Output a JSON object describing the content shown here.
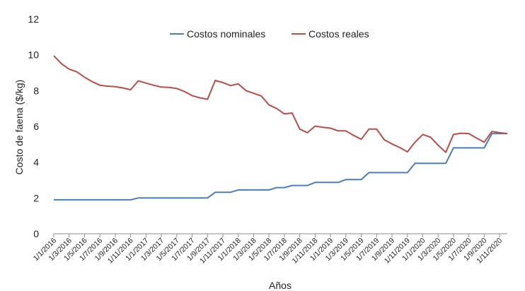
{
  "chart_data": {
    "type": "line",
    "xlabel": "Años",
    "ylabel": "Costo de faena ($/kg)",
    "ylim": [
      0,
      12
    ],
    "yticks": [
      0,
      2,
      4,
      6,
      8,
      10,
      12
    ],
    "grid": false,
    "legend_position": "top-center",
    "categories": [
      "1/1/2016",
      "1/3/2016",
      "1/5/2016",
      "1/7/2016",
      "1/9/2016",
      "1/11/2016",
      "1/1/2017",
      "1/3/2017",
      "1/5/2017",
      "1/7/2017",
      "1/9/2017",
      "1/11/2017",
      "1/1/2018",
      "1/3/2018",
      "1/5/2018",
      "1/7/2018",
      "1/9/2018",
      "1/11/2018",
      "1/1/2019",
      "1/3/2019",
      "1/5/2019",
      "1/7/2019",
      "1/9/2019",
      "1/11/2019",
      "1/1/2020",
      "1/3/2020",
      "1/5/2020",
      "1/7/2020",
      "1/9/2020",
      "1/11/2020"
    ],
    "x": [
      "1/1/2016",
      "1/2/2016",
      "1/3/2016",
      "1/4/2016",
      "1/5/2016",
      "1/6/2016",
      "1/7/2016",
      "1/8/2016",
      "1/9/2016",
      "1/10/2016",
      "1/11/2016",
      "1/12/2016",
      "1/1/2017",
      "1/2/2017",
      "1/3/2017",
      "1/4/2017",
      "1/5/2017",
      "1/6/2017",
      "1/7/2017",
      "1/8/2017",
      "1/9/2017",
      "1/10/2017",
      "1/11/2017",
      "1/12/2017",
      "1/1/2018",
      "1/2/2018",
      "1/3/2018",
      "1/4/2018",
      "1/5/2018",
      "1/6/2018",
      "1/7/2018",
      "1/8/2018",
      "1/9/2018",
      "1/10/2018",
      "1/11/2018",
      "1/12/2018",
      "1/1/2019",
      "1/2/2019",
      "1/3/2019",
      "1/4/2019",
      "1/5/2019",
      "1/6/2019",
      "1/7/2019",
      "1/8/2019",
      "1/9/2019",
      "1/10/2019",
      "1/11/2019",
      "1/12/2019",
      "1/1/2020",
      "1/2/2020",
      "1/3/2020",
      "1/4/2020",
      "1/5/2020",
      "1/6/2020",
      "1/7/2020",
      "1/8/2020",
      "1/9/2020",
      "1/10/2020",
      "1/11/2020",
      "1/12/2020"
    ],
    "series": [
      {
        "name": "Costos nominales",
        "color": "#4a7ebb",
        "values": [
          1.9,
          1.9,
          1.9,
          1.9,
          1.9,
          1.9,
          1.9,
          1.9,
          1.9,
          1.9,
          1.9,
          2.0,
          2.0,
          2.0,
          2.0,
          2.0,
          2.0,
          2.0,
          2.0,
          2.0,
          2.0,
          2.32,
          2.32,
          2.32,
          2.45,
          2.45,
          2.45,
          2.45,
          2.45,
          2.58,
          2.58,
          2.7,
          2.7,
          2.7,
          2.87,
          2.87,
          2.87,
          2.87,
          3.03,
          3.03,
          3.03,
          3.42,
          3.42,
          3.42,
          3.42,
          3.42,
          3.42,
          3.94,
          3.94,
          3.94,
          3.94,
          3.94,
          4.8,
          4.8,
          4.8,
          4.8,
          4.8,
          5.6,
          5.6,
          5.6
        ]
      },
      {
        "name": "Costos reales",
        "color": "#be4b48",
        "values": [
          9.95,
          9.5,
          9.2,
          9.05,
          8.75,
          8.5,
          8.3,
          8.25,
          8.22,
          8.15,
          8.05,
          8.55,
          8.42,
          8.3,
          8.2,
          8.18,
          8.12,
          7.95,
          7.72,
          7.6,
          7.52,
          8.57,
          8.45,
          8.28,
          8.38,
          8.0,
          7.85,
          7.7,
          7.2,
          7.0,
          6.7,
          6.75,
          5.85,
          5.65,
          6.02,
          5.95,
          5.9,
          5.75,
          5.75,
          5.5,
          5.28,
          5.85,
          5.85,
          5.25,
          5.02,
          4.82,
          4.58,
          5.12,
          5.55,
          5.4,
          4.95,
          4.55,
          5.55,
          5.62,
          5.6,
          5.35,
          5.12,
          5.72,
          5.65,
          5.6
        ]
      }
    ]
  }
}
